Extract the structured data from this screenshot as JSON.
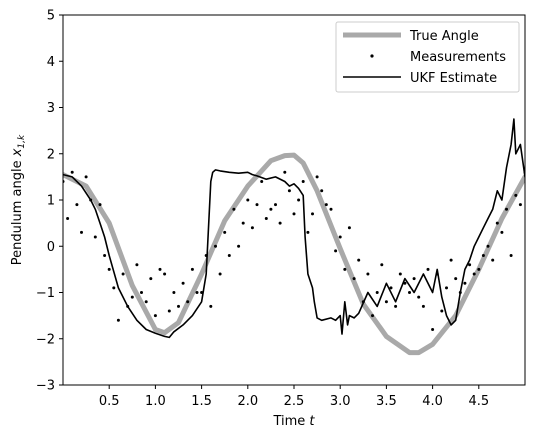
{
  "chart_data": {
    "type": "line",
    "xlabel": "Time t",
    "xlabel_text": "Time ",
    "xlabel_var": "t",
    "ylabel": "Pendulum angle x_{1,k}",
    "ylabel_text": "Pendulum angle ",
    "ylabel_var": "x",
    "ylabel_sub": "1,k",
    "xlim": [
      0.0,
      5.0
    ],
    "ylim": [
      -3,
      5
    ],
    "xticks": [
      "0.5",
      "1.0",
      "1.5",
      "2.0",
      "2.5",
      "3.0",
      "3.5",
      "4.0",
      "4.5"
    ],
    "xtick_values": [
      0.5,
      1.0,
      1.5,
      2.0,
      2.5,
      3.0,
      3.5,
      4.0,
      4.5
    ],
    "yticks": [
      "−3",
      "−2",
      "−1",
      "0",
      "1",
      "2",
      "3",
      "4",
      "5"
    ],
    "ytick_values": [
      -3,
      -2,
      -1,
      0,
      1,
      2,
      3,
      4,
      5
    ],
    "grid": false,
    "legend_position": "top-right",
    "legend": [
      "True Angle",
      "Measurements",
      "UKF Estimate"
    ],
    "series": [
      {
        "name": "True Angle",
        "style": "line",
        "color": "#a9a9a9",
        "x": [
          0.0,
          0.25,
          0.5,
          0.75,
          1.0,
          1.1,
          1.25,
          1.5,
          1.75,
          2.0,
          2.25,
          2.4,
          2.5,
          2.6,
          2.75,
          3.0,
          3.25,
          3.5,
          3.75,
          3.85,
          4.0,
          4.25,
          4.5,
          4.75,
          5.0
        ],
        "y": [
          1.55,
          1.3,
          0.5,
          -0.85,
          -1.8,
          -1.87,
          -1.65,
          -0.6,
          0.55,
          1.3,
          1.85,
          1.96,
          1.97,
          1.8,
          1.2,
          -0.05,
          -1.25,
          -1.95,
          -2.3,
          -2.3,
          -2.12,
          -1.5,
          -0.5,
          0.6,
          1.5
        ]
      },
      {
        "name": "Measurements",
        "style": "markers",
        "color": "#000000",
        "x": [
          0.0,
          0.05,
          0.1,
          0.15,
          0.2,
          0.25,
          0.3,
          0.35,
          0.4,
          0.45,
          0.5,
          0.55,
          0.6,
          0.65,
          0.7,
          0.75,
          0.8,
          0.85,
          0.9,
          0.95,
          1.0,
          1.05,
          1.1,
          1.15,
          1.2,
          1.25,
          1.3,
          1.35,
          1.4,
          1.45,
          1.5,
          1.55,
          1.6,
          1.65,
          1.7,
          1.75,
          1.8,
          1.85,
          1.9,
          1.95,
          2.0,
          2.05,
          2.1,
          2.15,
          2.2,
          2.25,
          2.3,
          2.35,
          2.4,
          2.45,
          2.5,
          2.55,
          2.6,
          2.65,
          2.7,
          2.75,
          2.8,
          2.85,
          2.9,
          2.95,
          3.0,
          3.05,
          3.1,
          3.15,
          3.2,
          3.25,
          3.3,
          3.35,
          3.4,
          3.45,
          3.5,
          3.55,
          3.6,
          3.65,
          3.7,
          3.75,
          3.8,
          3.85,
          3.9,
          3.95,
          4.0,
          4.05,
          4.1,
          4.15,
          4.2,
          4.25,
          4.3,
          4.35,
          4.4,
          4.45,
          4.5,
          4.55,
          4.6,
          4.65,
          4.7,
          4.75,
          4.8,
          4.85,
          4.9,
          4.95,
          5.0
        ],
        "y": [
          1.4,
          0.6,
          1.6,
          0.9,
          0.3,
          1.5,
          1.0,
          0.2,
          0.9,
          -0.2,
          -0.5,
          -0.9,
          -1.6,
          -0.6,
          -1.3,
          -1.1,
          -0.4,
          -1.0,
          -1.2,
          -0.7,
          -1.5,
          -0.5,
          -0.6,
          -1.4,
          -1.0,
          -1.3,
          -0.8,
          -1.2,
          -0.5,
          -1.0,
          -1.0,
          -0.2,
          -1.3,
          0.0,
          -0.6,
          0.3,
          -0.2,
          0.8,
          0.0,
          0.5,
          1.0,
          0.4,
          0.9,
          1.4,
          0.6,
          0.8,
          0.9,
          0.5,
          1.6,
          1.2,
          0.7,
          1.0,
          1.4,
          0.3,
          0.7,
          1.5,
          1.2,
          0.9,
          0.8,
          -0.1,
          0.2,
          -0.5,
          0.4,
          -0.7,
          -0.3,
          -1.2,
          -0.6,
          -1.5,
          -1.0,
          -0.4,
          -1.2,
          -0.9,
          -1.3,
          -0.6,
          -0.8,
          -1.0,
          -0.7,
          -1.1,
          -1.3,
          -0.5,
          -1.8,
          -0.6,
          -1.4,
          -0.9,
          -0.3,
          -0.7,
          -1.0,
          -0.8,
          -0.4,
          -0.6,
          -0.5,
          -0.2,
          0.0,
          -0.3,
          0.5,
          0.3,
          0.8,
          -0.2,
          1.1,
          0.9,
          1.6
        ]
      },
      {
        "name": "UKF Estimate",
        "style": "line",
        "color": "#000000",
        "x": [
          0.0,
          0.1,
          0.2,
          0.3,
          0.35,
          0.4,
          0.45,
          0.5,
          0.55,
          0.6,
          0.7,
          0.8,
          0.9,
          1.0,
          1.1,
          1.15,
          1.2,
          1.3,
          1.4,
          1.5,
          1.55,
          1.6,
          1.62,
          1.65,
          1.7,
          1.8,
          1.9,
          2.0,
          2.05,
          2.1,
          2.2,
          2.3,
          2.4,
          2.45,
          2.5,
          2.55,
          2.6,
          2.62,
          2.65,
          2.7,
          2.72,
          2.75,
          2.8,
          2.9,
          2.95,
          3.0,
          3.02,
          3.05,
          3.08,
          3.1,
          3.15,
          3.2,
          3.3,
          3.4,
          3.5,
          3.6,
          3.7,
          3.8,
          3.9,
          4.0,
          4.05,
          4.1,
          4.15,
          4.2,
          4.25,
          4.3,
          4.35,
          4.4,
          4.45,
          4.5,
          4.55,
          4.6,
          4.65,
          4.7,
          4.75,
          4.8,
          4.85,
          4.88,
          4.9,
          4.95,
          5.0
        ],
        "y": [
          1.55,
          1.5,
          1.3,
          1.0,
          0.8,
          0.5,
          0.2,
          -0.2,
          -0.55,
          -0.9,
          -1.3,
          -1.6,
          -1.8,
          -1.88,
          -1.95,
          -1.97,
          -1.85,
          -1.7,
          -1.5,
          -1.2,
          -0.6,
          1.4,
          1.6,
          1.65,
          1.63,
          1.6,
          1.58,
          1.6,
          1.55,
          1.52,
          1.45,
          1.5,
          1.4,
          1.3,
          1.35,
          1.25,
          1.1,
          0.2,
          -0.6,
          -0.9,
          -1.2,
          -1.55,
          -1.6,
          -1.55,
          -1.6,
          -1.5,
          -1.9,
          -1.2,
          -1.7,
          -1.5,
          -1.55,
          -1.45,
          -1.0,
          -1.3,
          -0.8,
          -1.2,
          -0.7,
          -1.0,
          -0.6,
          -1.0,
          -0.5,
          -1.1,
          -1.5,
          -1.7,
          -1.6,
          -1.0,
          -0.5,
          -0.3,
          0.0,
          0.2,
          0.4,
          0.6,
          0.8,
          1.2,
          1.0,
          1.7,
          2.2,
          2.75,
          2.0,
          2.2,
          1.5
        ]
      }
    ]
  }
}
